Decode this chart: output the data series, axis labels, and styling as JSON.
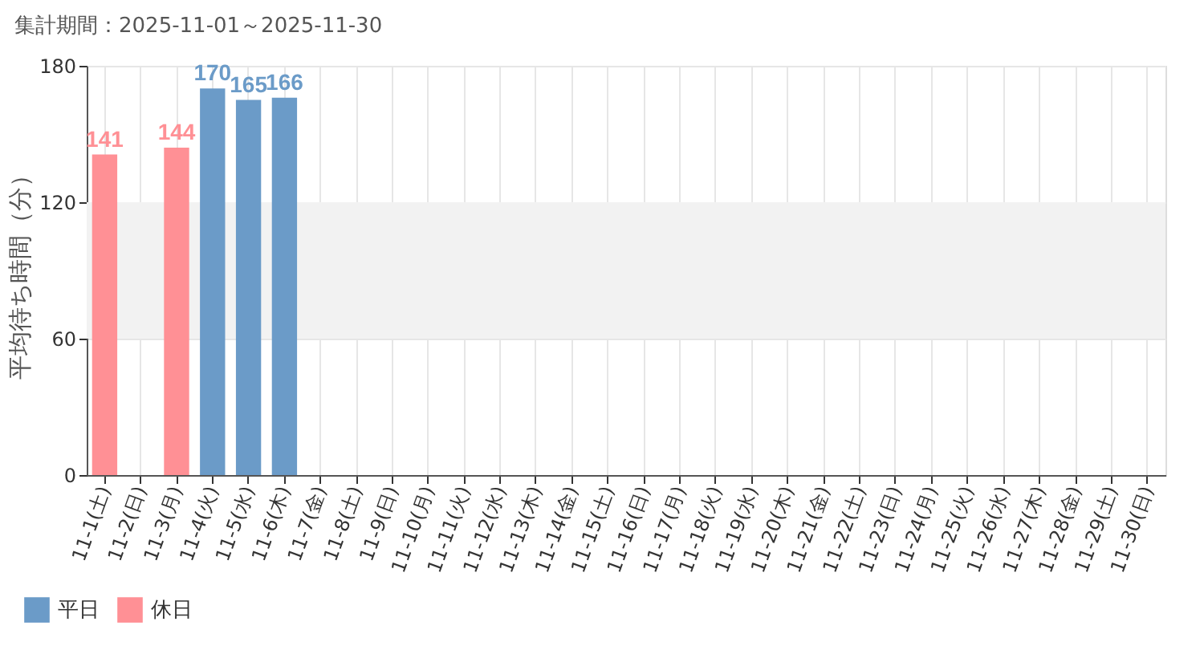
{
  "chart_data": {
    "type": "bar",
    "subtitle": "集計期間：2025-11-01～2025-11-30",
    "ylabel": "平均待ち時間（分）",
    "categories": [
      "11-1(土)",
      "11-2(日)",
      "11-3(月)",
      "11-4(火)",
      "11-5(水)",
      "11-6(木)",
      "11-7(金)",
      "11-8(土)",
      "11-9(日)",
      "11-10(月)",
      "11-11(火)",
      "11-12(水)",
      "11-13(木)",
      "11-14(金)",
      "11-15(土)",
      "11-16(日)",
      "11-17(月)",
      "11-18(火)",
      "11-19(水)",
      "11-20(木)",
      "11-21(金)",
      "11-22(土)",
      "11-23(日)",
      "11-24(月)",
      "11-25(火)",
      "11-26(水)",
      "11-27(木)",
      "11-28(金)",
      "11-29(土)",
      "11-30(日)"
    ],
    "series": [
      {
        "name": "平日",
        "color": "#6b9bc8",
        "values": [
          null,
          null,
          null,
          170,
          165,
          166,
          null,
          null,
          null,
          null,
          null,
          null,
          null,
          null,
          null,
          null,
          null,
          null,
          null,
          null,
          null,
          null,
          null,
          null,
          null,
          null,
          null,
          null,
          null,
          null
        ]
      },
      {
        "name": "休日",
        "color": "#ff9095",
        "values": [
          141,
          null,
          144,
          null,
          null,
          null,
          null,
          null,
          null,
          null,
          null,
          null,
          null,
          null,
          null,
          null,
          null,
          null,
          null,
          null,
          null,
          null,
          null,
          null,
          null,
          null,
          null,
          null,
          null,
          null
        ]
      }
    ],
    "ylim": [
      0,
      180
    ],
    "yticks": [
      0,
      60,
      120,
      180
    ],
    "bands": [
      {
        "axis": "y",
        "from": 60,
        "to": 120,
        "color": "#f2f2f2"
      }
    ],
    "data_labels": true,
    "grid": true,
    "legend": "bottom left"
  }
}
